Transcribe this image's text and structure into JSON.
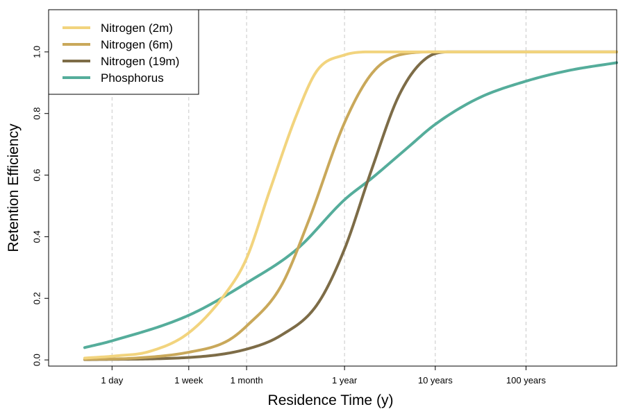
{
  "chart_data": {
    "type": "line",
    "title": "",
    "xlabel": "Residence Time (y)",
    "ylabel": "Retention Efficiency",
    "x_scale": "log10",
    "x_unit": "years",
    "xlim": [
      0.000548,
      998
    ],
    "ylim": [
      -0.02,
      1.137
    ],
    "x_ticks": [
      {
        "value": 0.00274,
        "label": "1 day"
      },
      {
        "value": 0.0192,
        "label": "1 week"
      },
      {
        "value": 0.0833,
        "label": "1 month"
      },
      {
        "value": 1,
        "label": "1 year"
      },
      {
        "value": 10,
        "label": "10 years"
      },
      {
        "value": 100,
        "label": "100 years"
      }
    ],
    "y_ticks": [
      "0.0",
      "0.2",
      "0.4",
      "0.6",
      "0.8",
      "1.0"
    ],
    "grid": "vertical dashed lines at x ticks",
    "legend_position": "top-left",
    "series": [
      {
        "name": "Nitrogen (2m)",
        "color": "#F2D47E",
        "points": [
          [
            0.00137,
            0.006
          ],
          [
            0.003,
            0.013
          ],
          [
            0.007,
            0.027
          ],
          [
            0.0192,
            0.088
          ],
          [
            0.05,
            0.22
          ],
          [
            0.0833,
            0.33
          ],
          [
            0.15,
            0.55
          ],
          [
            0.3,
            0.8
          ],
          [
            0.5,
            0.94
          ],
          [
            1,
            0.99
          ],
          [
            2,
            1.0
          ],
          [
            998,
            1.0
          ]
        ]
      },
      {
        "name": "Nitrogen (6m)",
        "color": "#C9A85A",
        "points": [
          [
            0.00137,
            0.002
          ],
          [
            0.005,
            0.006
          ],
          [
            0.0192,
            0.025
          ],
          [
            0.05,
            0.06
          ],
          [
            0.0833,
            0.11
          ],
          [
            0.2,
            0.24
          ],
          [
            0.4,
            0.45
          ],
          [
            1,
            0.77
          ],
          [
            2,
            0.93
          ],
          [
            4,
            0.99
          ],
          [
            10,
            1.0
          ],
          [
            998,
            1.0
          ]
        ]
      },
      {
        "name": "Nitrogen (19m)",
        "color": "#7D6C47",
        "points": [
          [
            0.00137,
            0.001
          ],
          [
            0.0192,
            0.008
          ],
          [
            0.0833,
            0.035
          ],
          [
            0.2,
            0.08
          ],
          [
            0.5,
            0.18
          ],
          [
            1,
            0.36
          ],
          [
            2,
            0.62
          ],
          [
            4,
            0.86
          ],
          [
            8,
            0.98
          ],
          [
            15,
            1.0
          ],
          [
            998,
            1.0
          ]
        ]
      },
      {
        "name": "Phosphorus",
        "color": "#55AD9B",
        "points": [
          [
            0.00137,
            0.04
          ],
          [
            0.00274,
            0.062
          ],
          [
            0.0192,
            0.145
          ],
          [
            0.0833,
            0.25
          ],
          [
            0.3,
            0.36
          ],
          [
            1,
            0.52
          ],
          [
            2,
            0.59
          ],
          [
            5,
            0.69
          ],
          [
            10,
            0.765
          ],
          [
            30,
            0.85
          ],
          [
            100,
            0.905
          ],
          [
            300,
            0.94
          ],
          [
            998,
            0.965
          ]
        ]
      }
    ]
  }
}
